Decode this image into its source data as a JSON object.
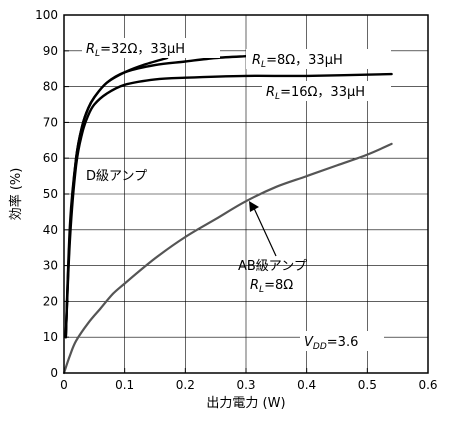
{
  "chart_data": {
    "type": "line",
    "xlabel": "出力電力 (W)",
    "ylabel": "効率 (%)",
    "xlim": [
      0,
      0.6
    ],
    "ylim": [
      0,
      100
    ],
    "x_ticks": [
      0,
      0.1,
      0.2,
      0.3,
      0.4,
      0.5,
      0.6
    ],
    "y_ticks": [
      0,
      10,
      20,
      30,
      40,
      50,
      60,
      70,
      80,
      90,
      100
    ],
    "x_tick_labels": [
      "0",
      "0.1",
      "0.2",
      "0.3",
      "0.4",
      "0.5",
      "0.6"
    ],
    "y_tick_labels": [
      "0",
      "10",
      "20",
      "30",
      "40",
      "50",
      "60",
      "70",
      "80",
      "90",
      "100"
    ],
    "grid": true,
    "series": [
      {
        "name": "RL=32Ω，33μH",
        "color": "#000000",
        "x": [
          0.003,
          0.01,
          0.02,
          0.03,
          0.04,
          0.05,
          0.07,
          0.1,
          0.13,
          0.17
        ],
        "y": [
          10,
          42,
          60,
          69,
          74,
          77,
          81,
          84,
          86,
          88
        ]
      },
      {
        "name": "RL=8Ω，33μH",
        "color": "#000000",
        "x": [
          0.003,
          0.01,
          0.02,
          0.03,
          0.04,
          0.05,
          0.07,
          0.1,
          0.15,
          0.2,
          0.25,
          0.3
        ],
        "y": [
          10,
          40,
          60,
          69,
          74,
          77,
          81,
          84,
          86,
          87,
          88,
          88.5
        ]
      },
      {
        "name": "RL=16Ω，33μH",
        "color": "#000000",
        "x": [
          0.003,
          0.01,
          0.02,
          0.03,
          0.04,
          0.05,
          0.07,
          0.1,
          0.15,
          0.2,
          0.3,
          0.4,
          0.54
        ],
        "y": [
          10,
          38,
          58,
          67,
          72,
          75,
          78,
          80.5,
          82,
          82.5,
          83,
          83,
          83.5
        ]
      },
      {
        "name": "AB級アンプ",
        "color": "#555555",
        "x": [
          0,
          0.01,
          0.02,
          0.04,
          0.06,
          0.08,
          0.1,
          0.15,
          0.2,
          0.25,
          0.3,
          0.35,
          0.4,
          0.45,
          0.5,
          0.54
        ],
        "y": [
          0,
          5,
          9,
          14,
          18,
          22,
          25,
          32,
          38,
          43,
          48,
          52,
          55,
          58,
          61,
          64
        ]
      }
    ],
    "annotations": {
      "rl32": {
        "pre": "R",
        "sub": "L",
        "post": "=32Ω，33μH"
      },
      "rl8": {
        "pre": "R",
        "sub": "L",
        "post": "=8Ω，33μH"
      },
      "rl16": {
        "pre": "R",
        "sub": "L",
        "post": "=16Ω，33μH"
      },
      "d_class": "D級アンプ",
      "ab_class_line1": "AB級アンプ",
      "ab_class_line2": {
        "pre": "R",
        "sub": "L",
        "post": "=8Ω"
      },
      "vdd": {
        "pre": "V",
        "sub": "DD",
        "post": "=3.6"
      }
    }
  }
}
